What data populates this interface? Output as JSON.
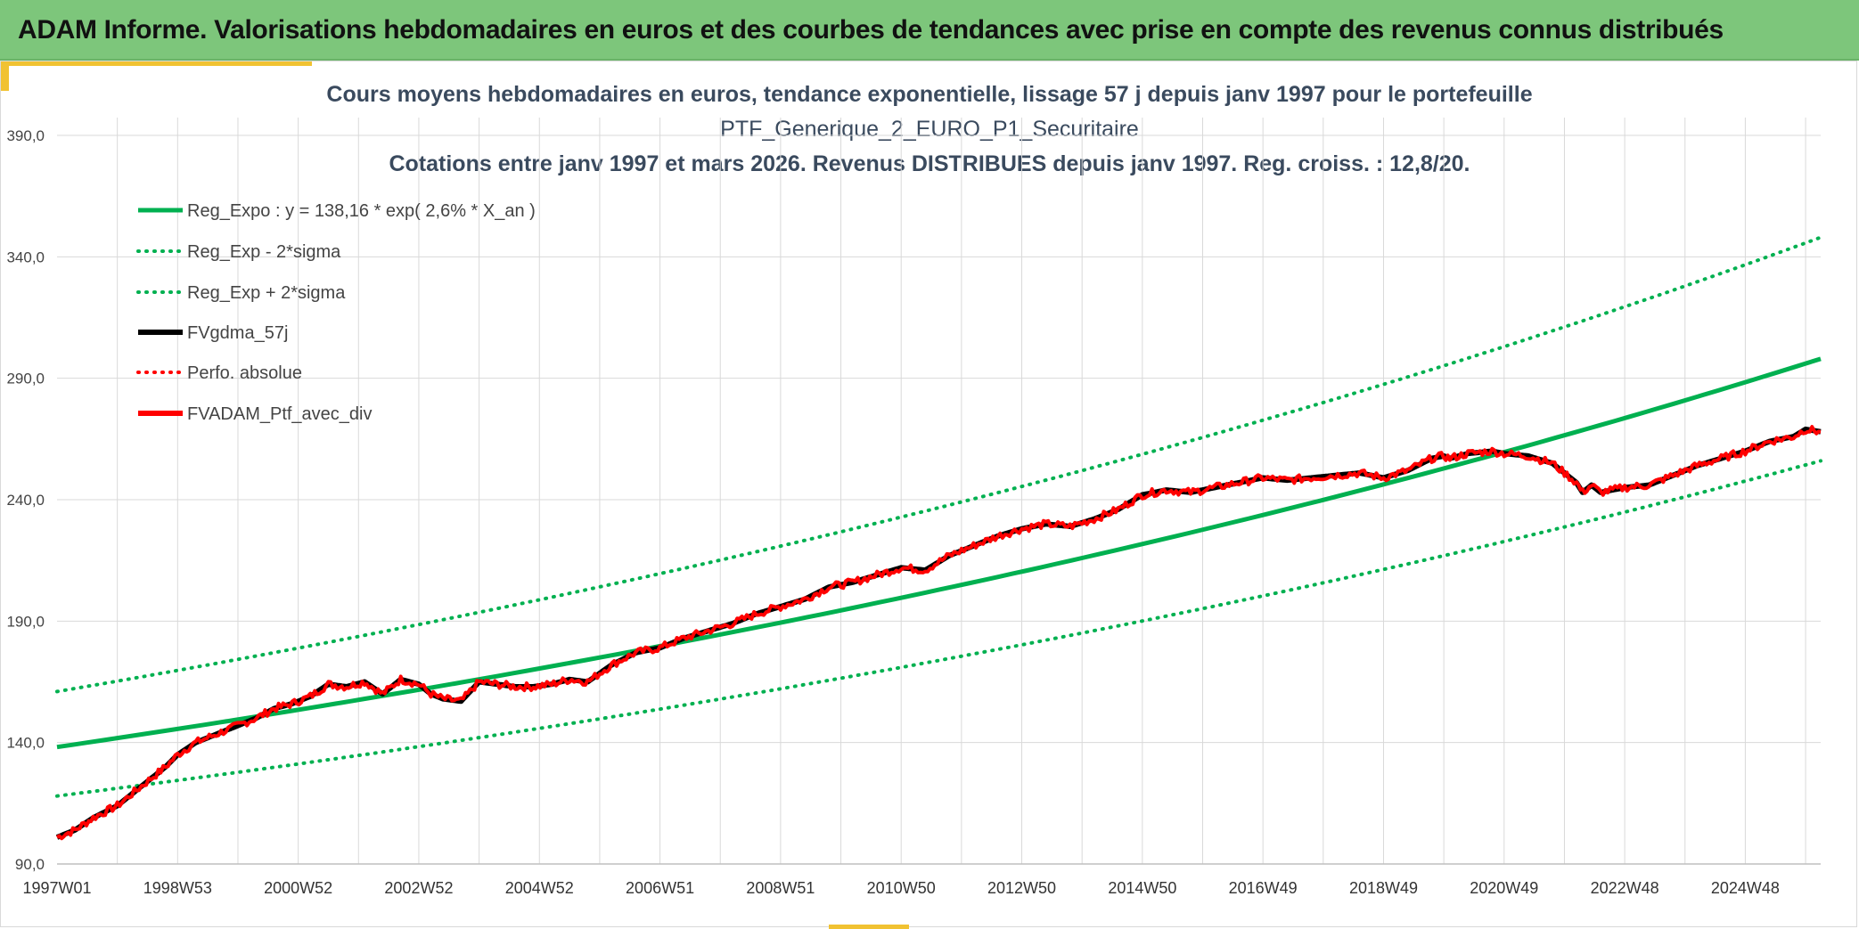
{
  "header": {
    "title": "ADAM Informe. Valorisations hebdomadaires en euros et des courbes de tendances avec prise en compte des revenus connus distribués"
  },
  "colors": {
    "banner": "#7dc67b",
    "accent": "#f1c232",
    "trend": "#00b050",
    "perf": "#ff0000",
    "smooth": "#000000"
  },
  "chart_data": {
    "type": "line",
    "title": [
      "Cours moyens hebdomadaires en euros, tendance exponentielle, lissage 57 j depuis janv 1997 pour le portefeuille",
      "PTF_Generique_2_EURO_P1_Securitaire",
      "Cotations entre janv 1997 et mars 2026. Revenus DISTRIBUES depuis janv 1997. Reg. croiss. : 12,8/20."
    ],
    "x_tick_labels": [
      "1997W01",
      "1998W53",
      "2000W52",
      "2002W52",
      "2004W52",
      "2006W51",
      "2008W51",
      "2010W50",
      "2012W50",
      "2014W50",
      "2016W49",
      "2018W49",
      "2020W49",
      "2022W48",
      "2024W48"
    ],
    "x_tick_years": [
      1997.0,
      1999.0,
      2001.0,
      2003.0,
      2005.0,
      2007.0,
      2009.0,
      2011.0,
      2013.0,
      2015.0,
      2017.0,
      2019.0,
      2021.0,
      2023.0,
      2025.0
    ],
    "xlim": [
      1997.0,
      2026.25
    ],
    "ylim": [
      90,
      390
    ],
    "y_ticks": [
      90,
      140,
      190,
      240,
      290,
      340,
      390
    ],
    "y_tick_labels": [
      "90,0",
      "140,0",
      "190,0",
      "240,0",
      "290,0",
      "340,0",
      "390,0"
    ],
    "legend": [
      {
        "label": "Reg_Expo : y = 138,16 * exp( 2,6% *  X_an )",
        "style": "solid",
        "color": "#00b050"
      },
      {
        "label": "Reg_Exp - 2*sigma",
        "style": "dotted",
        "color": "#00b050"
      },
      {
        "label": "Reg_Exp + 2*sigma",
        "style": "dotted",
        "color": "#00b050"
      },
      {
        "label": "FVgdma_57j",
        "style": "solid",
        "color": "#000000"
      },
      {
        "label": "Perfo. absolue",
        "style": "dotted",
        "color": "#ff0000"
      },
      {
        "label": "FVADAM_Ptf_avec_div",
        "style": "solid",
        "color": "#ff0000"
      }
    ],
    "series": [
      {
        "name": "Reg_Expo",
        "x": [
          1997.0,
          2026.25
        ],
        "values": [
          138.16,
          298
        ]
      },
      {
        "name": "Reg_Exp - 2*sigma",
        "x": [
          1997.0,
          2026.25
        ],
        "values": [
          118,
          256
        ]
      },
      {
        "name": "Reg_Exp + 2*sigma",
        "x": [
          1997.0,
          2026.25
        ],
        "values": [
          161,
          348
        ]
      },
      {
        "name": "FVADAM_Ptf_avec_div",
        "x": [
          1997.0,
          1997.3,
          1997.6,
          1998.0,
          1998.4,
          1998.8,
          1999.0,
          1999.3,
          1999.6,
          2000.0,
          2000.3,
          2000.6,
          2000.9,
          2001.2,
          2001.5,
          2001.8,
          2002.1,
          2002.4,
          2002.7,
          2003.0,
          2003.2,
          2003.4,
          2003.7,
          2004.0,
          2004.3,
          2004.6,
          2004.9,
          2005.2,
          2005.5,
          2005.8,
          2006.2,
          2006.6,
          2007.0,
          2007.4,
          2007.8,
          2008.2,
          2008.6,
          2009.0,
          2009.4,
          2009.8,
          2010.2,
          2010.6,
          2011.0,
          2011.4,
          2011.8,
          2012.2,
          2012.6,
          2013.0,
          2013.4,
          2013.8,
          2014.2,
          2014.6,
          2015.0,
          2015.4,
          2015.8,
          2016.2,
          2016.6,
          2017.0,
          2017.4,
          2017.8,
          2018.2,
          2018.6,
          2019.0,
          2019.4,
          2019.8,
          2020.0,
          2020.1,
          2020.4,
          2020.8,
          2021.0,
          2021.4,
          2021.8,
          2022.0,
          2022.2,
          2022.3,
          2022.45,
          2022.6,
          2023.0,
          2023.4,
          2023.8,
          2024.2,
          2024.6,
          2025.0,
          2025.4,
          2025.8,
          2026.0,
          2026.25
        ],
        "values": [
          101,
          104,
          109,
          114,
          122,
          130,
          135,
          140,
          143,
          147,
          150,
          154,
          156,
          159,
          164,
          163,
          165,
          160,
          166,
          164,
          160,
          158,
          157,
          165,
          164,
          163,
          163,
          164,
          166,
          165,
          172,
          177,
          179,
          183,
          186,
          189,
          193,
          196,
          199,
          204,
          206,
          209,
          212,
          211,
          217,
          221,
          225,
          228,
          230,
          229,
          232,
          236,
          242,
          244,
          243,
          245,
          247,
          249,
          248,
          249,
          250,
          251,
          249,
          252,
          257,
          258,
          257,
          259,
          260,
          259,
          258,
          255,
          251,
          247,
          243,
          246,
          243,
          245,
          246,
          250,
          254,
          257,
          260,
          264,
          266,
          269,
          268
        ]
      }
    ]
  }
}
